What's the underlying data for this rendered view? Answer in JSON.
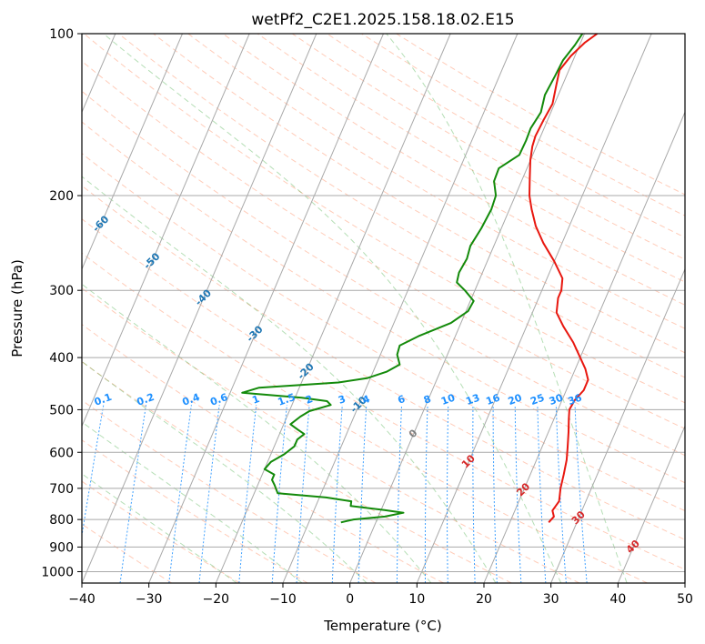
{
  "chart_data": {
    "type": "line",
    "title": "wetPf2_C2E1.2025.158.18.02.E15",
    "xlabel": "Temperature (°C)",
    "ylabel": "Pressure (hPa)",
    "xlim": [
      -40,
      50
    ],
    "ylim": [
      1050,
      100
    ],
    "y_scale": "log",
    "x_ticks": [
      -40,
      -30,
      -20,
      -10,
      0,
      10,
      20,
      30,
      40,
      50
    ],
    "y_ticks": [
      100,
      200,
      300,
      400,
      500,
      600,
      700,
      800,
      900,
      1000
    ],
    "grid": true,
    "series": [
      {
        "kind": "temperature",
        "color": "#e8170f",
        "points": [
          [
            25.8,
            810
          ],
          [
            26.2,
            790
          ],
          [
            25.6,
            770
          ],
          [
            26.0,
            740
          ],
          [
            25.4,
            700
          ],
          [
            25.0,
            660
          ],
          [
            24.5,
            620
          ],
          [
            23.9,
            590
          ],
          [
            23.0,
            550
          ],
          [
            22.2,
            520
          ],
          [
            21.7,
            500
          ],
          [
            21.9,
            480
          ],
          [
            22.6,
            460
          ],
          [
            22.6,
            440
          ],
          [
            21.5,
            420
          ],
          [
            20.0,
            400
          ],
          [
            18.0,
            375
          ],
          [
            15.5,
            350
          ],
          [
            13.6,
            330
          ],
          [
            12.9,
            310
          ],
          [
            12.9,
            300
          ],
          [
            12.3,
            285
          ],
          [
            10.0,
            265
          ],
          [
            7.2,
            245
          ],
          [
            5.0,
            228
          ],
          [
            3.3,
            212
          ],
          [
            2.1,
            200
          ],
          [
            1.0,
            185
          ],
          [
            0.0,
            172
          ],
          [
            -0.6,
            162
          ],
          [
            -0.8,
            155
          ],
          [
            -0.6,
            145
          ],
          [
            -0.3,
            135
          ],
          [
            -0.9,
            125
          ],
          [
            -1.4,
            117
          ],
          [
            -0.6,
            110
          ],
          [
            0.6,
            104
          ],
          [
            1.9,
            100
          ]
        ]
      },
      {
        "kind": "dewpoint",
        "color": "#138a0a",
        "points": [
          [
            -5.2,
            810
          ],
          [
            -3.5,
            800
          ],
          [
            1.0,
            790
          ],
          [
            3.5,
            777
          ],
          [
            0.5,
            768
          ],
          [
            -4.8,
            755
          ],
          [
            -5.0,
            740
          ],
          [
            -9.0,
            728
          ],
          [
            -16.5,
            715
          ],
          [
            -17.5,
            690
          ],
          [
            -18.2,
            675
          ],
          [
            -18.2,
            660
          ],
          [
            -20.0,
            645
          ],
          [
            -19.5,
            625
          ],
          [
            -18.0,
            605
          ],
          [
            -17.0,
            585
          ],
          [
            -17.0,
            568
          ],
          [
            -16.3,
            555
          ],
          [
            -17.5,
            545
          ],
          [
            -19.0,
            532
          ],
          [
            -18.0,
            515
          ],
          [
            -17.0,
            503
          ],
          [
            -14.2,
            490
          ],
          [
            -15.0,
            482
          ],
          [
            -19.0,
            475
          ],
          [
            -28.2,
            465
          ],
          [
            -26.0,
            455
          ],
          [
            -14.5,
            445
          ],
          [
            -10.5,
            437
          ],
          [
            -8.0,
            425
          ],
          [
            -6.5,
            412
          ],
          [
            -7.5,
            395
          ],
          [
            -7.7,
            380
          ],
          [
            -5.5,
            365
          ],
          [
            -1.5,
            345
          ],
          [
            0.3,
            328
          ],
          [
            0.5,
            314
          ],
          [
            -1.5,
            300
          ],
          [
            -3.2,
            290
          ],
          [
            -3.5,
            278
          ],
          [
            -3.2,
            262
          ],
          [
            -3.5,
            248
          ],
          [
            -3.0,
            230
          ],
          [
            -2.7,
            212
          ],
          [
            -2.9,
            200
          ],
          [
            -4.1,
            188
          ],
          [
            -4.2,
            178
          ],
          [
            -2.0,
            168
          ],
          [
            -1.9,
            158
          ],
          [
            -2.0,
            150
          ],
          [
            -1.5,
            140
          ],
          [
            -2.0,
            130
          ],
          [
            -1.7,
            120
          ],
          [
            -1.5,
            112
          ],
          [
            -0.7,
            105
          ],
          [
            -0.3,
            100
          ]
        ]
      }
    ],
    "isotherm_labels": [
      "-100",
      "-90",
      "-80",
      "-70",
      "-60",
      "-50",
      "-40",
      "-30",
      "-20",
      "-10",
      "0",
      "10",
      "20",
      "30",
      "40"
    ],
    "mixing_ratio_labels": [
      "0.1",
      "0.2",
      "0.4",
      "0.6",
      "1",
      "1.5",
      "2",
      "3",
      "4",
      "6",
      "8",
      "10",
      "13",
      "16",
      "20",
      "25",
      "30",
      "36"
    ],
    "colors": {
      "isotherm_cold": "#1f77b4",
      "isotherm_zero": "#7f7f7f",
      "isotherm_warm": "#d62728",
      "mixing_ratio": "#1e90ff",
      "dry_adiabat": "#ff7f50",
      "moist_adiabat": "#2ca02c",
      "grid": "#a9a9a9"
    }
  }
}
